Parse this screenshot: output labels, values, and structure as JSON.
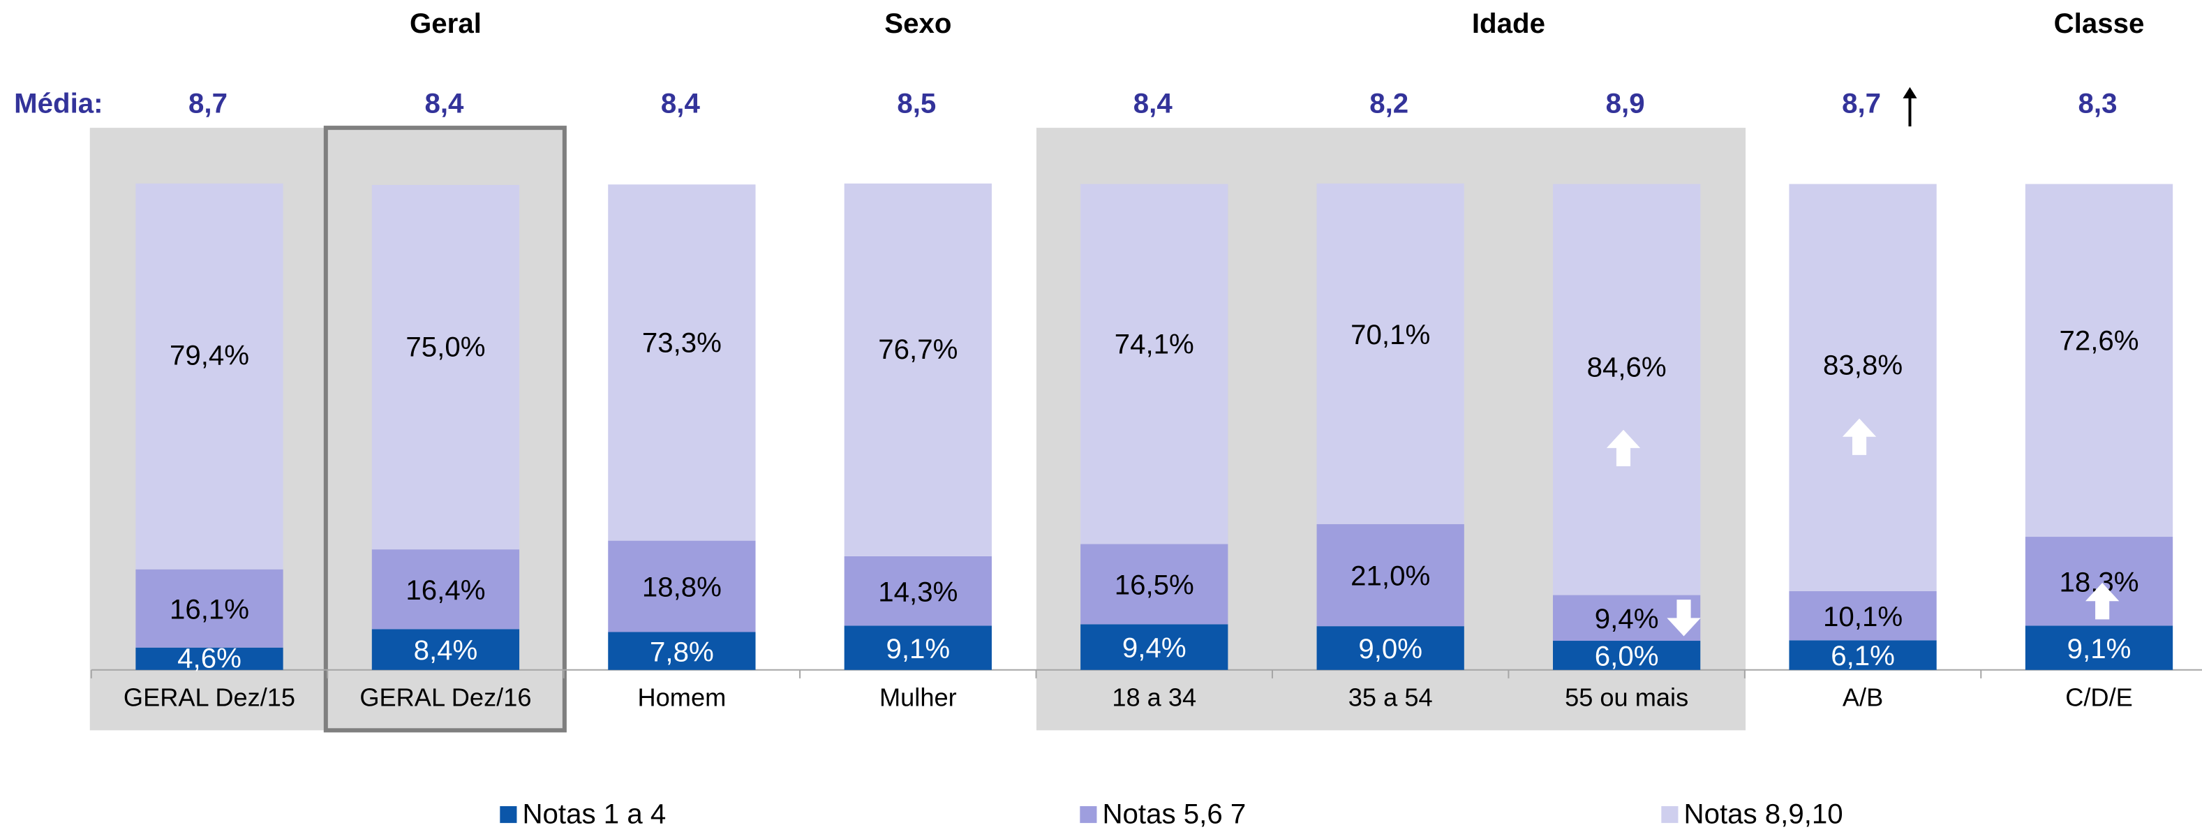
{
  "chart_data": {
    "type": "stacked_bar",
    "groups": [
      {
        "name": "Geral",
        "center": 1.5
      },
      {
        "name": "Sexo",
        "center": 3.5
      },
      {
        "name": "Idade",
        "center": 6
      },
      {
        "name": "Classe",
        "center": 8.5
      }
    ],
    "mean_label": "Média:",
    "means": [
      {
        "value": 8.7,
        "label": "8,7"
      },
      {
        "value": 8.4,
        "label": "8,4"
      },
      {
        "value": 8.4,
        "label": "8,4"
      },
      {
        "value": 8.5,
        "label": "8,5"
      },
      {
        "value": 8.4,
        "label": "8,4"
      },
      {
        "value": 8.2,
        "label": "8,2"
      },
      {
        "value": 8.9,
        "label": "8,9"
      },
      {
        "value": 8.7,
        "label": "8,7"
      },
      {
        "value": 8.3,
        "label": "8,3"
      }
    ],
    "categories": [
      "GERAL Dez/15",
      "GERAL Dez/16",
      "Homem",
      "Mulher",
      "18 a 34",
      "35 a 54",
      "55 ou mais",
      "A/B",
      "C/D/E"
    ],
    "ylim": [
      0,
      100
    ],
    "series": [
      {
        "name": "Notas 1 a 4",
        "color": "#0b56a9",
        "label_color": "#ffffff",
        "values": [
          4.6,
          8.4,
          7.8,
          9.1,
          9.4,
          9.0,
          6.0,
          6.1,
          9.1
        ],
        "value_labels": [
          "4,6%",
          "8,4%",
          "7,8%",
          "9,1%",
          "9,4%",
          "9,0%",
          "6,0%",
          "6,1%",
          "9,1%"
        ]
      },
      {
        "name": "Notas 5,6 7",
        "color": "#9e9ede",
        "label_color": "#000000",
        "values": [
          16.1,
          16.4,
          18.8,
          14.3,
          16.5,
          21.0,
          9.4,
          10.1,
          18.3
        ],
        "value_labels": [
          "16,1%",
          "16,4%",
          "18,8%",
          "14,3%",
          "16,5%",
          "21,0%",
          "9,4%",
          "10,1%",
          "18,3%"
        ]
      },
      {
        "name": "Notas 8,9,10",
        "color": "#cfcfee",
        "label_color": "#000000",
        "values": [
          79.4,
          75.0,
          73.3,
          76.7,
          74.1,
          70.1,
          84.6,
          83.8,
          72.6
        ],
        "value_labels": [
          "79,4%",
          "75,0%",
          "73,3%",
          "76,7%",
          "74,1%",
          "70,1%",
          "84,6%",
          "83,8%",
          "72,6%"
        ]
      }
    ]
  }
}
